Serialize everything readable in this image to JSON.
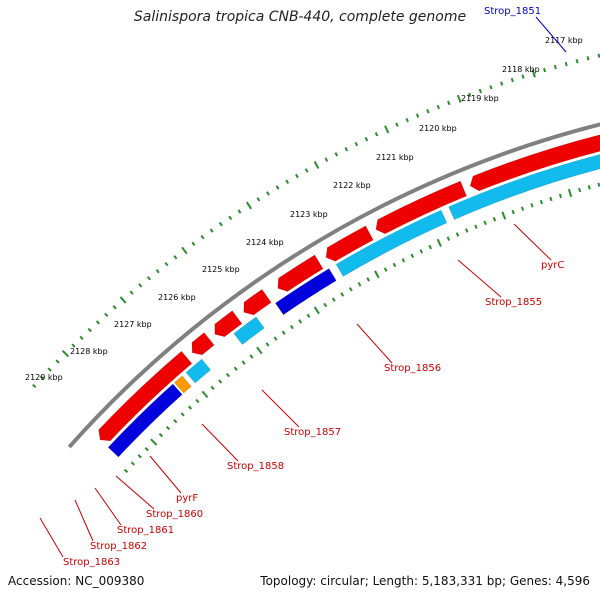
{
  "title": "Salinispora tropica CNB-440, complete genome",
  "footer": {
    "accession_label": "Accession:",
    "accession": "NC_009380",
    "topology_label": "Topology:",
    "topology": "circular",
    "length_label": "Length:",
    "length": "5,183,331 bp",
    "genes_label": "Genes:",
    "genes": "4,596"
  },
  "colors": {
    "backbone": "#808080",
    "tick": "#2e8b2e",
    "label": "#cc0000",
    "label_top": "#0000cc",
    "forward_cds": "#ee0000",
    "reverse_cds_dark": "#0000dd",
    "reverse_cds_light": "#11bbee",
    "orange": "#ff9900",
    "connector": "#5577aa"
  },
  "ticks": [
    {
      "label": "2117 kbp"
    },
    {
      "label": "2118 kbp"
    },
    {
      "label": "2119 kbp"
    },
    {
      "label": "2120 kbp"
    },
    {
      "label": "2121 kbp"
    },
    {
      "label": "2122 kbp"
    },
    {
      "label": "2123 kbp"
    },
    {
      "label": "2124 kbp"
    },
    {
      "label": "2125 kbp"
    },
    {
      "label": "2126 kbp"
    },
    {
      "label": "2127 kbp"
    },
    {
      "label": "2128 kbp"
    },
    {
      "label": "2129 kbp"
    }
  ],
  "gene_labels": [
    {
      "name": "Strop_1851",
      "color": "label_top"
    },
    {
      "name": "pyrC",
      "color": "label"
    },
    {
      "name": "Strop_1855",
      "color": "label"
    },
    {
      "name": "Strop_1856",
      "color": "label"
    },
    {
      "name": "Strop_1857",
      "color": "label"
    },
    {
      "name": "Strop_1858",
      "color": "label"
    },
    {
      "name": "pyrF",
      "color": "label"
    },
    {
      "name": "Strop_1860",
      "color": "label"
    },
    {
      "name": "Strop_1861",
      "color": "label"
    },
    {
      "name": "Strop_1862",
      "color": "label"
    },
    {
      "name": "Strop_1863",
      "color": "label"
    }
  ]
}
